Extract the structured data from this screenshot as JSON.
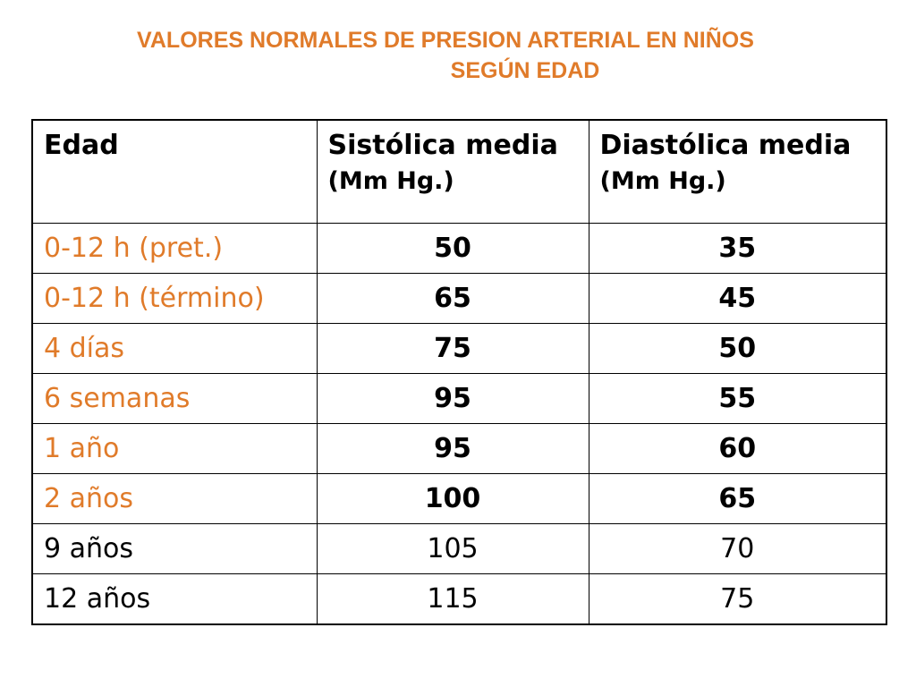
{
  "title": {
    "line1": "VALORES NORMALES DE PRESION ARTERIAL EN NIÑOS",
    "line2": "SEGÚN EDAD"
  },
  "table": {
    "headers": {
      "age": "Edad",
      "systolic": "Sistólica media",
      "systolic_unit": "(Mm Hg.)",
      "diastolic": "Diastólica media",
      "diastolic_unit": "(Mm Hg.)"
    },
    "rows": [
      {
        "age": "0-12 h (pret.)",
        "systolic": "50",
        "diastolic": "35"
      },
      {
        "age": "0-12 h (término)",
        "systolic": "65",
        "diastolic": "45"
      },
      {
        "age": "4 días",
        "systolic": "75",
        "diastolic": "50"
      },
      {
        "age": "6 semanas",
        "systolic": "95",
        "diastolic": "55"
      },
      {
        "age": "1 año",
        "systolic": "95",
        "diastolic": "60"
      },
      {
        "age": "2 años",
        "systolic": "100",
        "diastolic": "65"
      },
      {
        "age": "9 años",
        "systolic": "105",
        "diastolic": "70"
      },
      {
        "age": "12 años",
        "systolic": "115",
        "diastolic": "75"
      }
    ]
  },
  "colors": {
    "accent": "#e07b2a",
    "text": "#000000",
    "border": "#000000"
  }
}
